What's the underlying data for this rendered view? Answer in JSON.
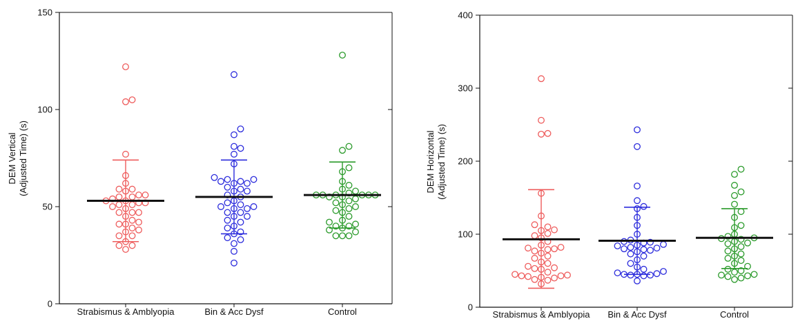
{
  "chart_data": [
    {
      "type": "scatter",
      "ylabel_line1": "DEM Vertical",
      "ylabel_line2": "(Adjusted Time) (s)",
      "ylim": [
        0,
        150
      ],
      "yticks": [
        0,
        50,
        100,
        150
      ],
      "categories": [
        "Strabismus & Amblyopia",
        "Bin & Acc Dysf",
        "Control"
      ],
      "colors": [
        "#ee5c5c",
        "#2b2bdc",
        "#2a9a2a"
      ],
      "grid": false,
      "groups": [
        {
          "mean": 53,
          "sd_low": 32,
          "sd_high": 74,
          "points": [
            122,
            105,
            104,
            77,
            66,
            62,
            59,
            59,
            58,
            56,
            56,
            55,
            55,
            54,
            53,
            53,
            52,
            52,
            51,
            51,
            50,
            49,
            47,
            47,
            47,
            45,
            43,
            42,
            41,
            41,
            39,
            38,
            37,
            35,
            35,
            32,
            30,
            30,
            28
          ]
        },
        {
          "mean": 55,
          "sd_low": 36,
          "sd_high": 74,
          "points": [
            118,
            90,
            87,
            81,
            80,
            77,
            72,
            65,
            64,
            64,
            63,
            63,
            62,
            62,
            60,
            59,
            58,
            58,
            56,
            55,
            53,
            52,
            51,
            50,
            50,
            49,
            49,
            47,
            47,
            45,
            45,
            43,
            42,
            40,
            39,
            37,
            36,
            34,
            33,
            31,
            27,
            21
          ]
        },
        {
          "mean": 56,
          "sd_low": 39,
          "sd_high": 73,
          "points": [
            128,
            81,
            79,
            70,
            68,
            63,
            61,
            59,
            58,
            57,
            56,
            56,
            56,
            56,
            56,
            56,
            55,
            55,
            54,
            53,
            52,
            51,
            50,
            49,
            48,
            47,
            45,
            43,
            42,
            41,
            40,
            40,
            39,
            38,
            37,
            35,
            35,
            35
          ]
        }
      ]
    },
    {
      "type": "scatter",
      "ylabel_line1": "DEM Horizontal",
      "ylabel_line2": "(Adjusted Time) (s)",
      "ylim": [
        0,
        400
      ],
      "yticks": [
        0,
        100,
        200,
        300,
        400
      ],
      "categories": [
        "Strabismus & Amblyopia",
        "Bin & Acc Dysf",
        "Control"
      ],
      "colors": [
        "#ee5c5c",
        "#2b2bdc",
        "#2a9a2a"
      ],
      "grid": false,
      "groups": [
        {
          "mean": 93,
          "sd_low": 26,
          "sd_high": 161,
          "points": [
            313,
            256,
            238,
            237,
            156,
            125,
            113,
            110,
            106,
            105,
            101,
            98,
            95,
            90,
            85,
            82,
            81,
            80,
            79,
            77,
            74,
            70,
            67,
            62,
            60,
            56,
            54,
            53,
            52,
            48,
            45,
            44,
            43,
            43,
            42,
            41,
            40,
            38,
            37,
            32
          ]
        },
        {
          "mean": 91,
          "sd_low": 45,
          "sd_high": 137,
          "points": [
            243,
            220,
            166,
            146,
            138,
            135,
            123,
            112,
            100,
            92,
            90,
            89,
            88,
            86,
            85,
            84,
            82,
            81,
            80,
            79,
            78,
            76,
            73,
            70,
            65,
            60,
            55,
            52,
            49,
            47,
            46,
            45,
            45,
            44,
            44,
            43,
            36
          ]
        },
        {
          "mean": 95,
          "sd_low": 53,
          "sd_high": 135,
          "points": [
            189,
            182,
            167,
            158,
            153,
            141,
            131,
            123,
            112,
            109,
            100,
            97,
            95,
            94,
            93,
            90,
            88,
            87,
            83,
            80,
            77,
            73,
            70,
            67,
            64,
            60,
            56,
            52,
            50,
            48,
            45,
            44,
            43,
            42,
            40,
            38
          ]
        }
      ]
    }
  ]
}
